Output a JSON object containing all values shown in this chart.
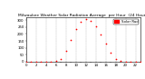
{
  "title": "Milwaukee Weather Solar Radiation Average  per Hour  (24 Hours)",
  "hours": [
    0,
    1,
    2,
    3,
    4,
    5,
    6,
    7,
    8,
    9,
    10,
    11,
    12,
    13,
    14,
    15,
    16,
    17,
    18,
    19,
    20,
    21,
    22,
    23
  ],
  "solar": [
    0,
    0,
    0,
    0,
    0,
    0.2,
    4,
    22,
    78,
    158,
    238,
    288,
    308,
    292,
    252,
    198,
    132,
    62,
    18,
    3,
    0.2,
    0,
    0,
    0
  ],
  "dot_color": "#ff0000",
  "dot_size": 1.5,
  "legend_color": "#ff0000",
  "legend_label": "Solar Rad",
  "ylim": [
    0,
    320
  ],
  "xlim": [
    0,
    23
  ],
  "bg_color": "#ffffff",
  "grid_color": "#aaaaaa",
  "title_fontsize": 3.2,
  "tick_fontsize": 2.8,
  "legend_fontsize": 2.8,
  "yticks": [
    0,
    50,
    100,
    150,
    200,
    250,
    300
  ],
  "xticks": [
    0,
    1,
    2,
    3,
    4,
    5,
    6,
    7,
    8,
    9,
    10,
    11,
    12,
    13,
    14,
    15,
    16,
    17,
    18,
    19,
    20,
    21,
    22,
    23
  ],
  "grid_hours": [
    0,
    2,
    4,
    6,
    8,
    10,
    12,
    14,
    16,
    18,
    20,
    22
  ]
}
